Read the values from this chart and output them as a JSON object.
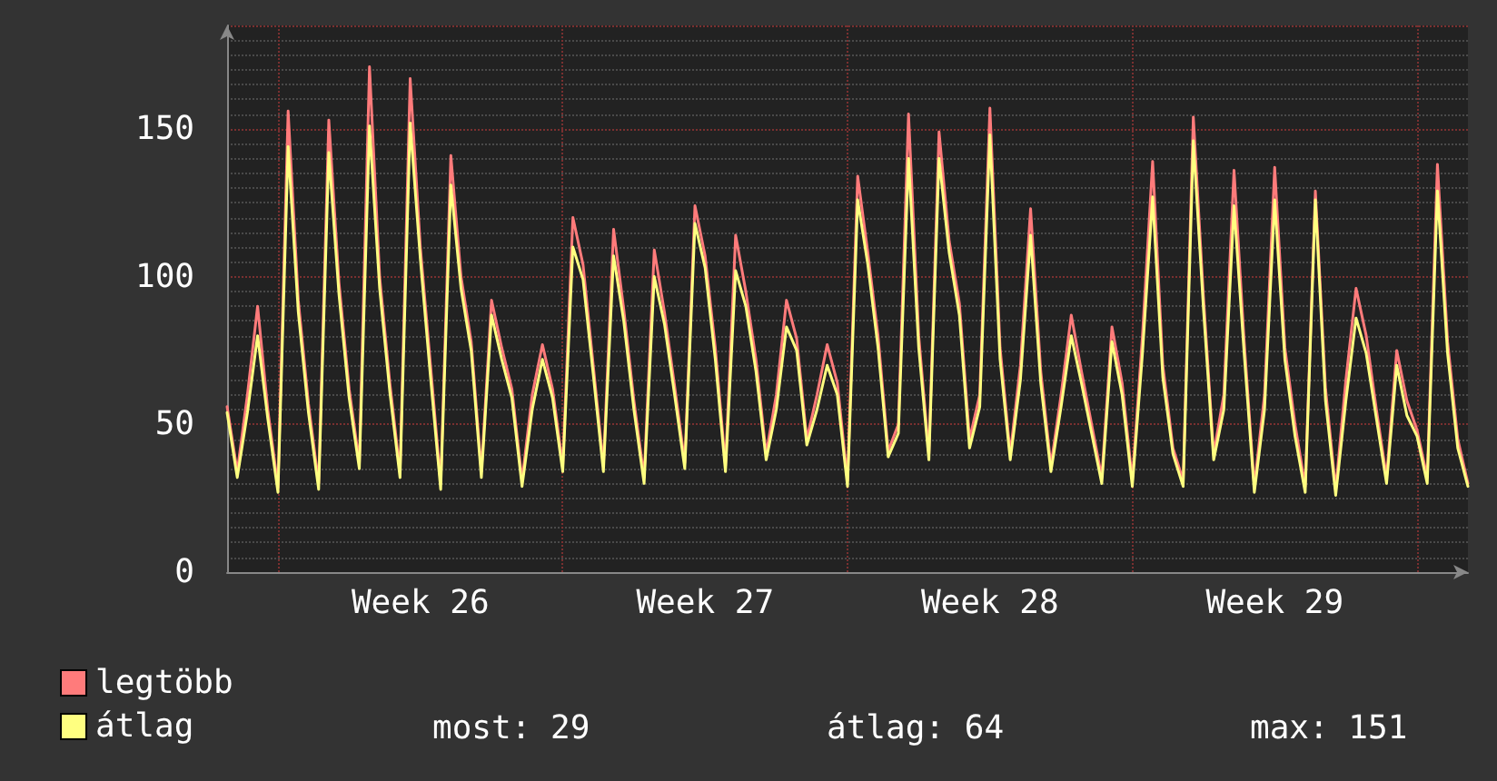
{
  "chart_data": {
    "type": "line",
    "categories": [
      null,
      null,
      null,
      null,
      null,
      null,
      null,
      null,
      null,
      null,
      null,
      null,
      null,
      null,
      null,
      null,
      null,
      null,
      null,
      "Week 26",
      null,
      null,
      null,
      null,
      null,
      null,
      null,
      null,
      null,
      null,
      null,
      null,
      null,
      null,
      null,
      null,
      null,
      null,
      null,
      null,
      null,
      null,
      null,
      null,
      null,
      null,
      null,
      "Week 27",
      null,
      null,
      null,
      null,
      null,
      null,
      null,
      null,
      null,
      null,
      null,
      null,
      null,
      null,
      null,
      null,
      null,
      null,
      null,
      null,
      null,
      null,
      null,
      null,
      null,
      null,
      null,
      "Week 28",
      null,
      null,
      null,
      null,
      null,
      null,
      null,
      null,
      null,
      null,
      null,
      null,
      null,
      null,
      null,
      null,
      null,
      null,
      null,
      null,
      null,
      null,
      null,
      null,
      null,
      null,
      null,
      "Week 29",
      null,
      null,
      null,
      null,
      null,
      null,
      null,
      null,
      null,
      null,
      null,
      null,
      null,
      null,
      null,
      null,
      null,
      null,
      null
    ],
    "series": [
      {
        "name": "legtöbb",
        "color": "#ff7b7b",
        "values": [
          56,
          34,
          60,
          90,
          55,
          29,
          156,
          92,
          57,
          30,
          153,
          98,
          62,
          37,
          171,
          100,
          64,
          34,
          167,
          110,
          70,
          30,
          141,
          100,
          78,
          34,
          92,
          76,
          62,
          31,
          60,
          77,
          62,
          36,
          120,
          104,
          70,
          36,
          116,
          89,
          58,
          32,
          109,
          88,
          63,
          37,
          124,
          107,
          76,
          36,
          114,
          95,
          72,
          40,
          60,
          92,
          79,
          45,
          60,
          77,
          64,
          31,
          134,
          108,
          80,
          41,
          50,
          155,
          80,
          40,
          149,
          112,
          91,
          45,
          60,
          157,
          76,
          40,
          70,
          123,
          68,
          36,
          60,
          87,
          68,
          50,
          32,
          83,
          64,
          31,
          80,
          139,
          70,
          42,
          31,
          154,
          93,
          40,
          60,
          136,
          78,
          29,
          60,
          137,
          76,
          50,
          29,
          129,
          62,
          28,
          65,
          96,
          80,
          55,
          32,
          75,
          58,
          48,
          32,
          138,
          78,
          45,
          30
        ]
      },
      {
        "name": "átlag",
        "color": "#ffff80",
        "values": [
          54,
          32,
          54,
          80,
          52,
          27,
          144,
          88,
          54,
          28,
          142,
          94,
          59,
          35,
          151,
          96,
          61,
          32,
          152,
          106,
          66,
          28,
          131,
          96,
          75,
          32,
          87,
          72,
          59,
          29,
          55,
          72,
          59,
          34,
          110,
          99,
          67,
          34,
          107,
          85,
          55,
          30,
          100,
          84,
          60,
          35,
          118,
          103,
          72,
          34,
          102,
          90,
          68,
          38,
          55,
          83,
          75,
          43,
          55,
          70,
          60,
          29,
          126,
          104,
          76,
          39,
          47,
          140,
          76,
          38,
          140,
          108,
          87,
          42,
          56,
          148,
          72,
          38,
          65,
          114,
          64,
          34,
          56,
          80,
          64,
          47,
          30,
          78,
          60,
          29,
          74,
          127,
          66,
          40,
          29,
          146,
          89,
          38,
          55,
          124,
          74,
          27,
          55,
          126,
          72,
          46,
          27,
          126,
          58,
          26,
          58,
          86,
          74,
          52,
          30,
          70,
          53,
          46,
          30,
          129,
          74,
          42,
          29
        ]
      }
    ],
    "ylim": [
      0,
      185
    ],
    "yticks": [
      0,
      50,
      100,
      150
    ],
    "grid": true,
    "legend": "bottom left",
    "marker": "none",
    "line_style": "solid",
    "annotations": [
      "most: 29",
      "átlag: 64",
      "max: 151"
    ]
  }
}
